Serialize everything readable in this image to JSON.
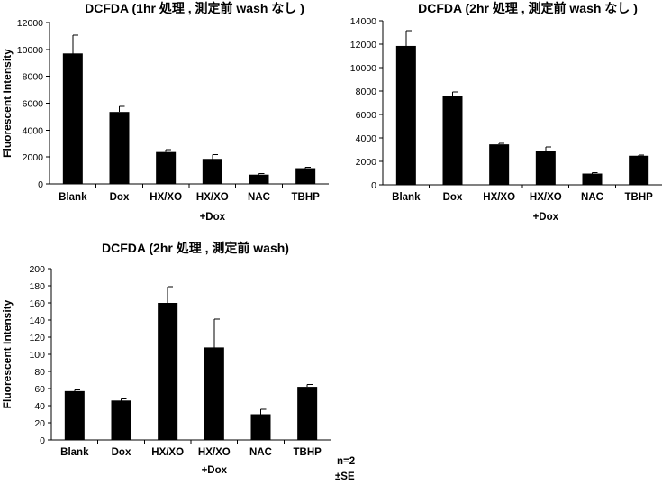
{
  "chart_data": [
    {
      "type": "bar",
      "title": "DCFDA (1hr 処理 , 測定前 wash なし )",
      "ylabel": "Fluorescent Intensity",
      "xlabel": "",
      "ylim": [
        0,
        12000
      ],
      "yticks": [
        0,
        2000,
        4000,
        6000,
        8000,
        10000,
        12000
      ],
      "categories": [
        "Blank",
        "Dox",
        "HX/XO",
        "HX/XO",
        "NAC",
        "TBHP"
      ],
      "category_sublabels": [
        "",
        "",
        "",
        "+Dox",
        "",
        ""
      ],
      "values": [
        9700,
        5350,
        2370,
        1860,
        690,
        1170
      ],
      "errors": [
        1350,
        420,
        170,
        320,
        90,
        70
      ]
    },
    {
      "type": "bar",
      "title": "DCFDA (2hr 処理 , 測定前 wash なし )",
      "ylabel": "",
      "xlabel": "",
      "ylim": [
        0,
        14000
      ],
      "yticks": [
        0,
        2000,
        4000,
        6000,
        8000,
        10000,
        12000,
        14000
      ],
      "categories": [
        "Blank",
        "Dox",
        "HX/XO",
        "HX/XO",
        "NAC",
        "TBHP"
      ],
      "category_sublabels": [
        "",
        "",
        "",
        "+Dox",
        "",
        ""
      ],
      "values": [
        11850,
        7600,
        3450,
        2900,
        960,
        2480
      ],
      "errors": [
        1300,
        320,
        100,
        350,
        80,
        60
      ]
    },
    {
      "type": "bar",
      "title": "DCFDA (2hr 処理 , 測定前 wash)",
      "ylabel": "Fluorescent Intensity",
      "xlabel": "",
      "ylim": [
        0,
        200
      ],
      "yticks": [
        0,
        20,
        40,
        60,
        80,
        100,
        120,
        140,
        160,
        180,
        200
      ],
      "categories": [
        "Blank",
        "Dox",
        "HX/XO",
        "HX/XO",
        "NAC",
        "TBHP"
      ],
      "category_sublabels": [
        "",
        "",
        "",
        "+Dox",
        "",
        ""
      ],
      "values": [
        57,
        46,
        160,
        108,
        30,
        62
      ],
      "errors": [
        1.5,
        2,
        19,
        33,
        6,
        3
      ]
    }
  ],
  "notes": [
    "n=2",
    "±SE"
  ]
}
